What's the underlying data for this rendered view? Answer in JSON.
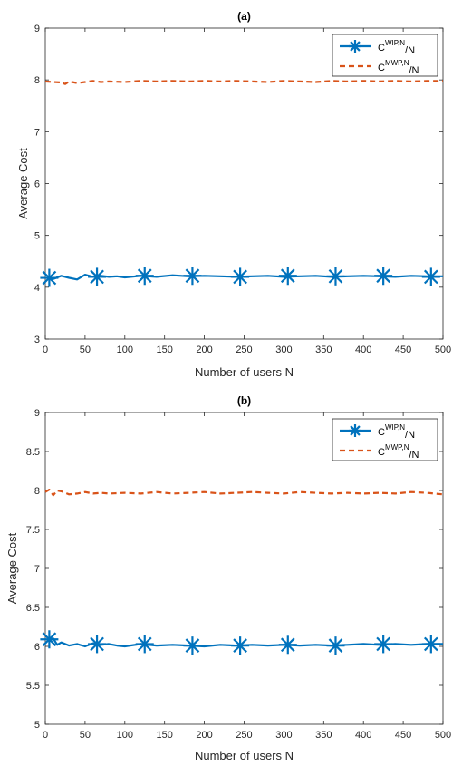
{
  "chart_data": [
    {
      "type": "line",
      "title": "(a)",
      "xlabel": "Number of users N",
      "ylabel": "Average Cost",
      "xlim": [
        0,
        500
      ],
      "ylim": [
        3,
        9
      ],
      "xticks": [
        0,
        50,
        100,
        150,
        200,
        250,
        300,
        350,
        400,
        450,
        500
      ],
      "yticks": [
        3,
        4,
        5,
        6,
        7,
        8,
        9
      ],
      "xtick_labels": [
        "0",
        "50",
        "100",
        "150",
        "200",
        "250",
        "300",
        "350",
        "400",
        "450",
        "500"
      ],
      "ytick_labels": [
        "3",
        "4",
        "5",
        "6",
        "7",
        "8",
        "9"
      ],
      "grid": false,
      "legend_position": "top-right",
      "series": [
        {
          "name_main": "C",
          "name_sup": "WIP,N",
          "name_tail": "/N",
          "color": "#0072BD",
          "style": "solid-star",
          "x": [
            5,
            10,
            20,
            30,
            40,
            50,
            60,
            70,
            80,
            90,
            100,
            120,
            140,
            160,
            180,
            200,
            220,
            240,
            260,
            280,
            300,
            320,
            340,
            360,
            380,
            400,
            420,
            440,
            460,
            480,
            500
          ],
          "y": [
            4.18,
            4.16,
            4.22,
            4.18,
            4.15,
            4.24,
            4.2,
            4.22,
            4.2,
            4.21,
            4.19,
            4.22,
            4.2,
            4.23,
            4.21,
            4.22,
            4.21,
            4.2,
            4.21,
            4.22,
            4.2,
            4.21,
            4.22,
            4.2,
            4.21,
            4.22,
            4.21,
            4.2,
            4.22,
            4.21,
            4.21
          ],
          "markers_x": [
            5,
            65,
            125,
            185,
            245,
            305,
            365,
            425,
            485
          ],
          "markers_y": [
            4.18,
            4.2,
            4.22,
            4.22,
            4.2,
            4.22,
            4.21,
            4.22,
            4.2
          ]
        },
        {
          "name_main": "C",
          "name_sup": "MWP,N",
          "name_tail": "/N",
          "color": "#D95319",
          "style": "dashed",
          "x": [
            0,
            10,
            20,
            25,
            30,
            40,
            50,
            60,
            70,
            80,
            100,
            120,
            140,
            160,
            180,
            200,
            220,
            240,
            260,
            280,
            300,
            320,
            340,
            360,
            380,
            400,
            420,
            440,
            460,
            480,
            500
          ],
          "y": [
            7.97,
            7.96,
            7.95,
            7.92,
            7.97,
            7.94,
            7.96,
            7.98,
            7.96,
            7.97,
            7.96,
            7.98,
            7.97,
            7.98,
            7.97,
            7.98,
            7.97,
            7.98,
            7.97,
            7.96,
            7.98,
            7.97,
            7.96,
            7.98,
            7.97,
            7.98,
            7.97,
            7.98,
            7.97,
            7.98,
            7.98
          ]
        }
      ]
    },
    {
      "type": "line",
      "title": "(b)",
      "xlabel": "Number of users N",
      "ylabel": "Average Cost",
      "xlim": [
        0,
        500
      ],
      "ylim": [
        5,
        9
      ],
      "xticks": [
        0,
        50,
        100,
        150,
        200,
        250,
        300,
        350,
        400,
        450,
        500
      ],
      "yticks": [
        5,
        5.5,
        6,
        6.5,
        7,
        7.5,
        8,
        8.5,
        9
      ],
      "xtick_labels": [
        "0",
        "50",
        "100",
        "150",
        "200",
        "250",
        "300",
        "350",
        "400",
        "450",
        "500"
      ],
      "ytick_labels": [
        "5",
        "5.5",
        "6",
        "6.5",
        "7",
        "7.5",
        "8",
        "8.5",
        "9"
      ],
      "grid": false,
      "legend_position": "top-right",
      "series": [
        {
          "name_main": "C",
          "name_sup": "WIP,N",
          "name_tail": "/N",
          "color": "#0072BD",
          "style": "solid-star",
          "x": [
            5,
            10,
            15,
            20,
            25,
            30,
            40,
            50,
            60,
            70,
            80,
            90,
            100,
            120,
            140,
            160,
            180,
            200,
            220,
            240,
            260,
            280,
            300,
            320,
            340,
            360,
            380,
            400,
            420,
            440,
            460,
            480,
            500
          ],
          "y": [
            6.08,
            6.1,
            6.02,
            6.05,
            6.03,
            6.01,
            6.03,
            6.0,
            6.04,
            6.02,
            6.03,
            6.01,
            6.0,
            6.03,
            6.01,
            6.02,
            6.01,
            6.0,
            6.02,
            6.01,
            6.02,
            6.01,
            6.02,
            6.01,
            6.02,
            6.01,
            6.02,
            6.03,
            6.02,
            6.03,
            6.02,
            6.03,
            6.03
          ],
          "markers_x": [
            5,
            65,
            125,
            185,
            245,
            305,
            365,
            425,
            485
          ],
          "markers_y": [
            6.09,
            6.03,
            6.03,
            6.01,
            6.01,
            6.02,
            6.01,
            6.03,
            6.03
          ]
        },
        {
          "name_main": "C",
          "name_sup": "MWP,N",
          "name_tail": "/N",
          "color": "#D95319",
          "style": "dashed",
          "x": [
            0,
            5,
            10,
            15,
            20,
            25,
            30,
            40,
            50,
            60,
            70,
            80,
            100,
            120,
            140,
            160,
            180,
            200,
            220,
            240,
            260,
            280,
            300,
            320,
            340,
            360,
            380,
            400,
            420,
            440,
            460,
            480,
            500
          ],
          "y": [
            7.98,
            8.01,
            7.94,
            8.0,
            7.99,
            7.97,
            7.95,
            7.96,
            7.98,
            7.96,
            7.97,
            7.96,
            7.97,
            7.96,
            7.98,
            7.96,
            7.97,
            7.98,
            7.96,
            7.97,
            7.98,
            7.97,
            7.96,
            7.98,
            7.97,
            7.96,
            7.97,
            7.96,
            7.97,
            7.96,
            7.98,
            7.97,
            7.95
          ]
        }
      ]
    }
  ]
}
